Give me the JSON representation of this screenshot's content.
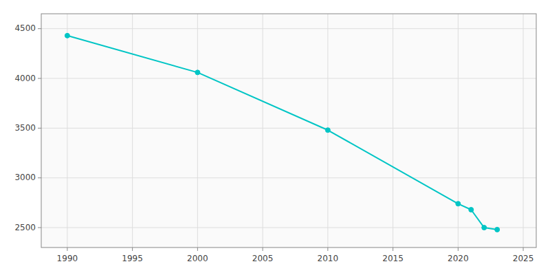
{
  "chart_data": {
    "type": "line",
    "x": [
      1990,
      2000,
      2010,
      2020,
      2021,
      2022,
      2023
    ],
    "values": [
      4430,
      4060,
      3480,
      2740,
      2680,
      2500,
      2480
    ],
    "color": "#00C5C5",
    "marker": "circle",
    "xlim": [
      1988,
      2026
    ],
    "ylim": [
      2300,
      4650
    ],
    "xticks": [
      1990,
      1995,
      2000,
      2005,
      2010,
      2015,
      2020,
      2025
    ],
    "yticks": [
      2500,
      3000,
      3500,
      4000,
      4500
    ],
    "grid": true
  }
}
